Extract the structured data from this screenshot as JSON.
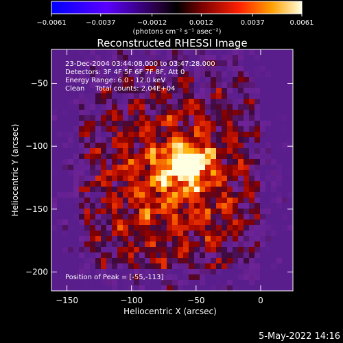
{
  "chart_data": {
    "type": "heatmap",
    "title": "Reconstructed RHESSI Image",
    "xlabel": "Heliocentric X (arcsec)",
    "ylabel": "Heliocentric Y (arcsec)",
    "xlim": [
      -162,
      25
    ],
    "ylim": [
      -215,
      -23
    ],
    "x_ticks": [
      -150,
      -100,
      -50,
      0
    ],
    "x_tick_labels": [
      "−150",
      "−100",
      "−50",
      "0"
    ],
    "y_ticks": [
      -50,
      -100,
      -150,
      -200
    ],
    "y_tick_labels": [
      "−50",
      "−100",
      "−150",
      "−200"
    ],
    "colorbar": {
      "min": -0.0061,
      "max": 0.0061,
      "ticks": [
        -0.0061,
        -0.0037,
        -0.0012,
        0.0012,
        0.0037,
        0.0061
      ],
      "tick_labels": [
        "−0.0061",
        "−0.0037",
        "−0.0012",
        "0.0012",
        "0.0037",
        "0.0061"
      ],
      "unit_label": "(photons cm⁻² s⁻¹ asec⁻²)"
    },
    "annotations": [
      "23-Dec-2004 03:44:08.000 to 03:47:28.000",
      "Detectors: 3F 4F 5F 6F 7F 8F, Att 0",
      "Energy Range: 6.0 - 12.0 keV",
      "Clean     Total counts: 2.04E+04"
    ],
    "peak_label": "Position of Peak = [-55,-113]",
    "peak": [
      -55,
      -113
    ]
  },
  "footer": {
    "date": "5-May-2022 14:16"
  }
}
